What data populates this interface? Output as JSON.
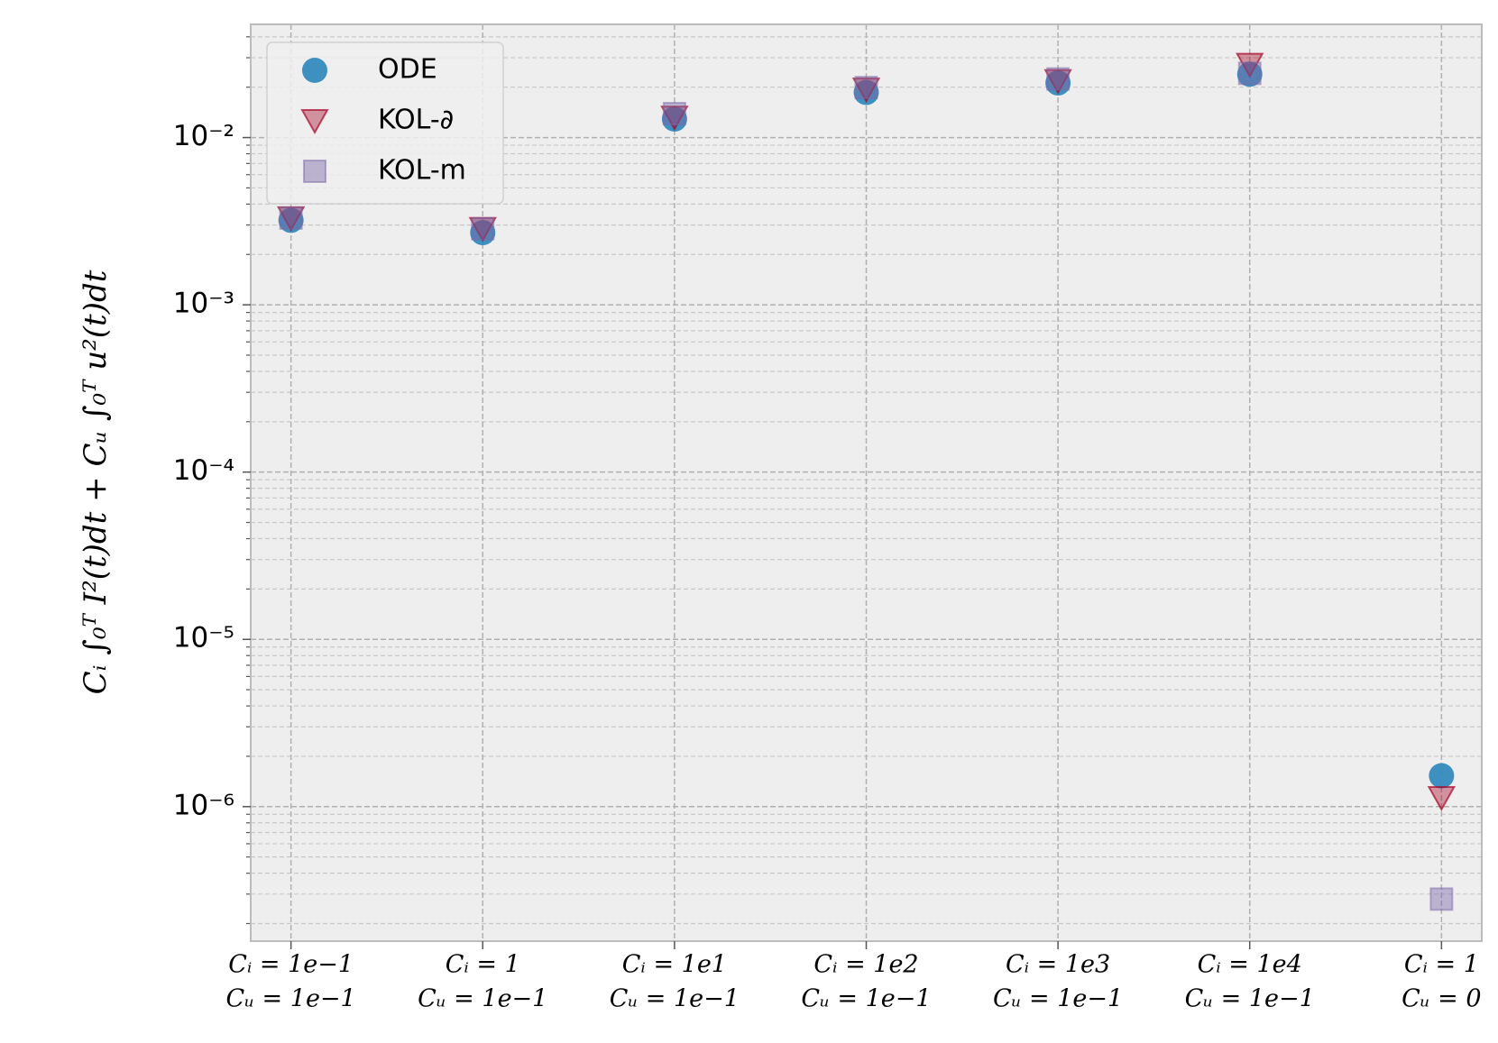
{
  "chart_data": {
    "type": "scatter",
    "ylabel": "Cᵢ ∫₀ᵀ I²(t)dt + Cᵤ ∫₀ᵀ u²(t)dt",
    "categories": [
      [
        "Cᵢ = 1e−1",
        "Cᵤ = 1e−1"
      ],
      [
        "Cᵢ = 1",
        "Cᵤ = 1e−1"
      ],
      [
        "Cᵢ = 1e1",
        "Cᵤ = 1e−1"
      ],
      [
        "Cᵢ = 1e2",
        "Cᵤ = 1e−1"
      ],
      [
        "Cᵢ = 1e3",
        "Cᵤ = 1e−1"
      ],
      [
        "Cᵢ = 1e4",
        "Cᵤ = 1e−1"
      ],
      [
        "Cᵢ = 1",
        "Cᵤ = 0"
      ]
    ],
    "series": [
      {
        "name": "ODE",
        "color": "#348abd",
        "marker": "circle",
        "values": [
          0.0032,
          0.0027,
          0.0129,
          0.0186,
          0.0212,
          0.0239,
          1.53e-06
        ]
      },
      {
        "name": "KOL-∂",
        "color": "#a60628",
        "marker": "triangle-down",
        "values": [
          0.0033,
          0.00285,
          0.0132,
          0.0194,
          0.0218,
          0.0273,
          1.13e-06
        ]
      },
      {
        "name": "KOL-m",
        "color": "#7a68a6",
        "marker": "square",
        "values": [
          0.0033,
          0.00285,
          0.0139,
          0.0199,
          0.0224,
          0.0242,
          2.8e-07
        ]
      }
    ],
    "log_scale": true,
    "ylim": [
      1.57e-07,
      0.0475
    ],
    "yticks": [
      {
        "value": 1e-06,
        "label": "10⁻⁶"
      },
      {
        "value": 1e-05,
        "label": "10⁻⁵"
      },
      {
        "value": 0.0001,
        "label": "10⁻⁴"
      },
      {
        "value": 0.001,
        "label": "10⁻³"
      },
      {
        "value": 0.01,
        "label": "10⁻²"
      }
    ],
    "grid": true,
    "minor_grid": true,
    "legend": "upper left"
  }
}
